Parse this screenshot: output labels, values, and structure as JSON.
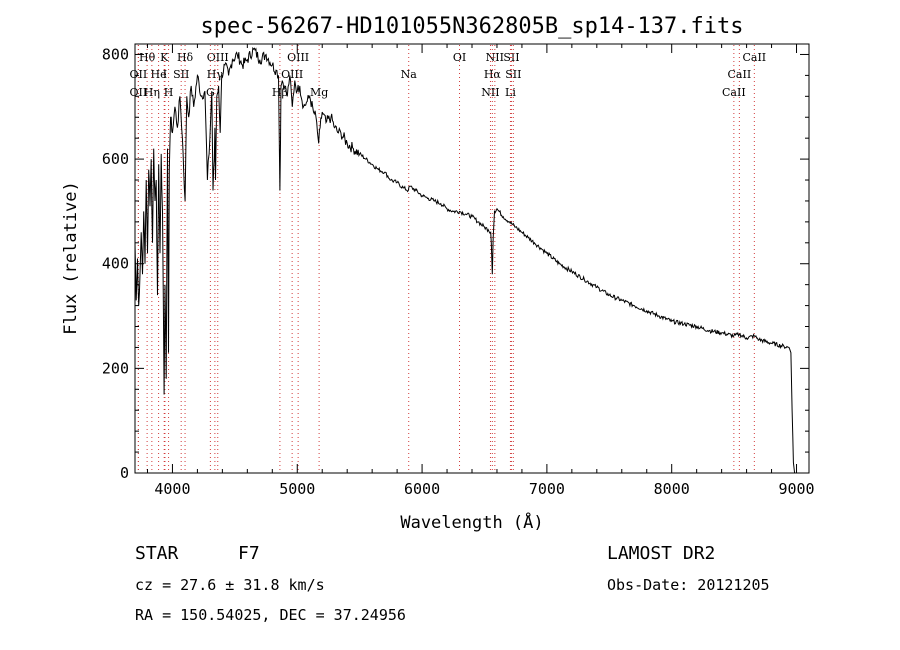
{
  "chart_data": {
    "type": "line",
    "title": "spec-56267-HD101055N362805B_sp14-137.fits",
    "xlabel": "Wavelength (Å)",
    "ylabel": "Flux (relative)",
    "xlim": [
      3700,
      9100
    ],
    "ylim": [
      0,
      820
    ],
    "xticks": [
      4000,
      5000,
      6000,
      7000,
      8000,
      9000
    ],
    "yticks": [
      0,
      200,
      400,
      600,
      800
    ],
    "grid": false,
    "series": [
      {
        "x": [
          3700,
          3710,
          3720,
          3730,
          3740,
          3750,
          3760,
          3770,
          3780,
          3790,
          3800,
          3810,
          3820,
          3830,
          3840,
          3850,
          3860,
          3870,
          3880,
          3890,
          3900,
          3910,
          3920,
          3933,
          3940,
          3950,
          3960,
          3968,
          3975,
          3985,
          4000,
          4020,
          4040,
          4060,
          4080,
          4101,
          4115,
          4130,
          4150,
          4170,
          4200,
          4230,
          4260,
          4280,
          4300,
          4315,
          4325,
          4335,
          4340,
          4345,
          4355,
          4370,
          4383,
          4395,
          4420,
          4450,
          4480,
          4520,
          4560,
          4600,
          4650,
          4700,
          4750,
          4800,
          4830,
          4850,
          4861,
          4870,
          4880,
          4900,
          4920,
          4940,
          4960,
          4980,
          5000,
          5020,
          5050,
          5080,
          5100,
          5130,
          5150,
          5167,
          5172,
          5183,
          5200,
          5230,
          5270,
          5300,
          5330,
          5350,
          5400,
          5450,
          5500,
          5550,
          5600,
          5650,
          5700,
          5750,
          5800,
          5850,
          5890,
          5900,
          5950,
          6000,
          6050,
          6100,
          6150,
          6200,
          6250,
          6300,
          6350,
          6400,
          6450,
          6500,
          6530,
          6550,
          6555,
          6563,
          6570,
          6580,
          6600,
          6650,
          6700,
          6750,
          6800,
          6850,
          6900,
          6950,
          7000,
          7100,
          7200,
          7300,
          7400,
          7500,
          7600,
          7700,
          7800,
          7900,
          8000,
          8100,
          8200,
          8300,
          8400,
          8498,
          8542,
          8600,
          8662,
          8700,
          8800,
          8900,
          8940,
          8955,
          8965,
          8975,
          8985
        ],
        "y": [
          440,
          330,
          410,
          320,
          380,
          460,
          380,
          500,
          400,
          560,
          420,
          580,
          510,
          600,
          440,
          620,
          520,
          560,
          340,
          590,
          420,
          610,
          500,
          150,
          360,
          180,
          620,
          230,
          580,
          680,
          650,
          700,
          660,
          720,
          640,
          520,
          720,
          680,
          740,
          700,
          760,
          720,
          730,
          560,
          640,
          730,
          540,
          600,
          660,
          560,
          720,
          740,
          650,
          760,
          780,
          760,
          790,
          800,
          780,
          790,
          810,
          790,
          800,
          780,
          770,
          760,
          540,
          740,
          750,
          740,
          720,
          760,
          700,
          750,
          730,
          740,
          700,
          710,
          720,
          690,
          680,
          640,
          630,
          660,
          690,
          670,
          680,
          660,
          650,
          650,
          630,
          620,
          610,
          600,
          590,
          580,
          575,
          560,
          555,
          545,
          540,
          548,
          540,
          530,
          525,
          520,
          515,
          505,
          500,
          500,
          495,
          490,
          480,
          470,
          465,
          460,
          440,
          380,
          450,
          500,
          505,
          490,
          480,
          470,
          460,
          450,
          440,
          430,
          420,
          400,
          385,
          370,
          355,
          340,
          330,
          320,
          310,
          300,
          290,
          285,
          280,
          272,
          268,
          262,
          265,
          258,
          262,
          255,
          248,
          242,
          240,
          230,
          120,
          20,
          0
        ]
      }
    ],
    "spectral_lines": [
      {
        "label": "Hθ",
        "wl": 3797,
        "row": 1
      },
      {
        "label": "K",
        "wl": 3934,
        "row": 1
      },
      {
        "label": "Hδ",
        "wl": 4101,
        "row": 1
      },
      {
        "label": "OIII",
        "wl": 4363,
        "row": 1
      },
      {
        "label": "OIII",
        "wl": 5007,
        "row": 1
      },
      {
        "label": "OI",
        "wl": 6300,
        "row": 1
      },
      {
        "label": "NII",
        "wl": 6583,
        "row": 1
      },
      {
        "label": "SII",
        "wl": 6716,
        "row": 1
      },
      {
        "label": "CaII",
        "wl": 8662,
        "row": 1
      },
      {
        "label": "OII",
        "wl": 3727,
        "row": 2
      },
      {
        "label": "He",
        "wl": 3889,
        "row": 2
      },
      {
        "label": "I",
        "wl": 3940,
        "row": 2
      },
      {
        "label": "SII",
        "wl": 4070,
        "row": 2
      },
      {
        "label": "Hγ",
        "wl": 4340,
        "row": 2
      },
      {
        "label": "OIII",
        "wl": 4959,
        "row": 2
      },
      {
        "label": "Na",
        "wl": 5893,
        "row": 2
      },
      {
        "label": "Hα",
        "wl": 6563,
        "row": 2
      },
      {
        "label": "SII",
        "wl": 6731,
        "row": 2
      },
      {
        "label": "CaII",
        "wl": 8542,
        "row": 2
      },
      {
        "label": "OII",
        "wl": 3727,
        "row": 3
      },
      {
        "label": "Hη",
        "wl": 3835,
        "row": 3
      },
      {
        "label": "H",
        "wl": 3969,
        "row": 3
      },
      {
        "label": "G",
        "wl": 4304,
        "row": 3
      },
      {
        "label": "Hβ",
        "wl": 4861,
        "row": 3
      },
      {
        "label": "Mg",
        "wl": 5175,
        "row": 3
      },
      {
        "label": "NII",
        "wl": 6548,
        "row": 3
      },
      {
        "label": "Li",
        "wl": 6708,
        "row": 3
      },
      {
        "label": "CaII",
        "wl": 8498,
        "row": 3
      }
    ]
  },
  "info": {
    "object_class": "STAR",
    "subclass": "F7",
    "survey": "LAMOST DR2",
    "redshift": "cz = 27.6 ± 31.8 km/s",
    "obs_date": "Obs-Date: 20121205",
    "coords": "RA = 150.54025, DEC =  37.24956"
  }
}
